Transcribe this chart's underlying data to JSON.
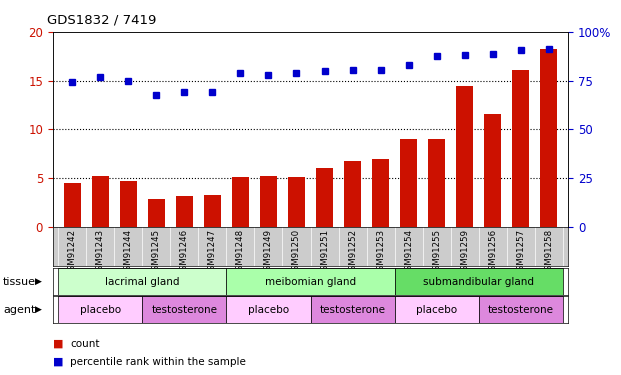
{
  "title": "GDS1832 / 7419",
  "samples": [
    "GSM91242",
    "GSM91243",
    "GSM91244",
    "GSM91245",
    "GSM91246",
    "GSM91247",
    "GSM91248",
    "GSM91249",
    "GSM91250",
    "GSM91251",
    "GSM91252",
    "GSM91253",
    "GSM91254",
    "GSM91255",
    "GSM91259",
    "GSM91256",
    "GSM91257",
    "GSM91258"
  ],
  "bar_values": [
    4.5,
    5.2,
    4.7,
    2.9,
    3.2,
    3.3,
    5.1,
    5.2,
    5.1,
    6.0,
    6.8,
    7.0,
    9.0,
    9.0,
    14.5,
    11.6,
    16.1,
    18.2
  ],
  "dot_values": [
    14.9,
    15.4,
    14.95,
    13.5,
    13.8,
    13.8,
    15.8,
    15.6,
    15.8,
    16.0,
    16.1,
    16.1,
    16.6,
    17.5,
    17.6,
    17.7,
    18.1,
    18.2
  ],
  "bar_color": "#cc1100",
  "dot_color": "#0000cc",
  "ylim_left": [
    0,
    20
  ],
  "ylim_right": [
    0,
    100
  ],
  "yticks_left": [
    0,
    5,
    10,
    15,
    20
  ],
  "yticks_right": [
    0,
    25,
    50,
    75,
    100
  ],
  "ytick_labels_right": [
    "0",
    "25",
    "50",
    "75",
    "100%"
  ],
  "tissue_groups": [
    {
      "label": "lacrimal gland",
      "start": 0,
      "end": 6,
      "color": "#ccffcc"
    },
    {
      "label": "meibomian gland",
      "start": 6,
      "end": 12,
      "color": "#aaffaa"
    },
    {
      "label": "submandibular gland",
      "start": 12,
      "end": 18,
      "color": "#66dd66"
    }
  ],
  "agent_groups": [
    {
      "label": "placebo",
      "start": 0,
      "end": 3,
      "color": "#ffccff"
    },
    {
      "label": "testosterone",
      "start": 3,
      "end": 6,
      "color": "#dd88dd"
    },
    {
      "label": "placebo",
      "start": 6,
      "end": 9,
      "color": "#ffccff"
    },
    {
      "label": "testosterone",
      "start": 9,
      "end": 12,
      "color": "#dd88dd"
    },
    {
      "label": "placebo",
      "start": 12,
      "end": 15,
      "color": "#ffccff"
    },
    {
      "label": "testosterone",
      "start": 15,
      "end": 18,
      "color": "#dd88dd"
    }
  ],
  "legend_count_label": "count",
  "legend_pct_label": "percentile rank within the sample",
  "tissue_label": "tissue",
  "agent_label": "agent",
  "background_color": "#ffffff",
  "plot_bg_color": "#ffffff",
  "tick_label_color_left": "#cc1100",
  "tick_label_color_right": "#0000cc",
  "xlabel_bg_color": "#cccccc"
}
